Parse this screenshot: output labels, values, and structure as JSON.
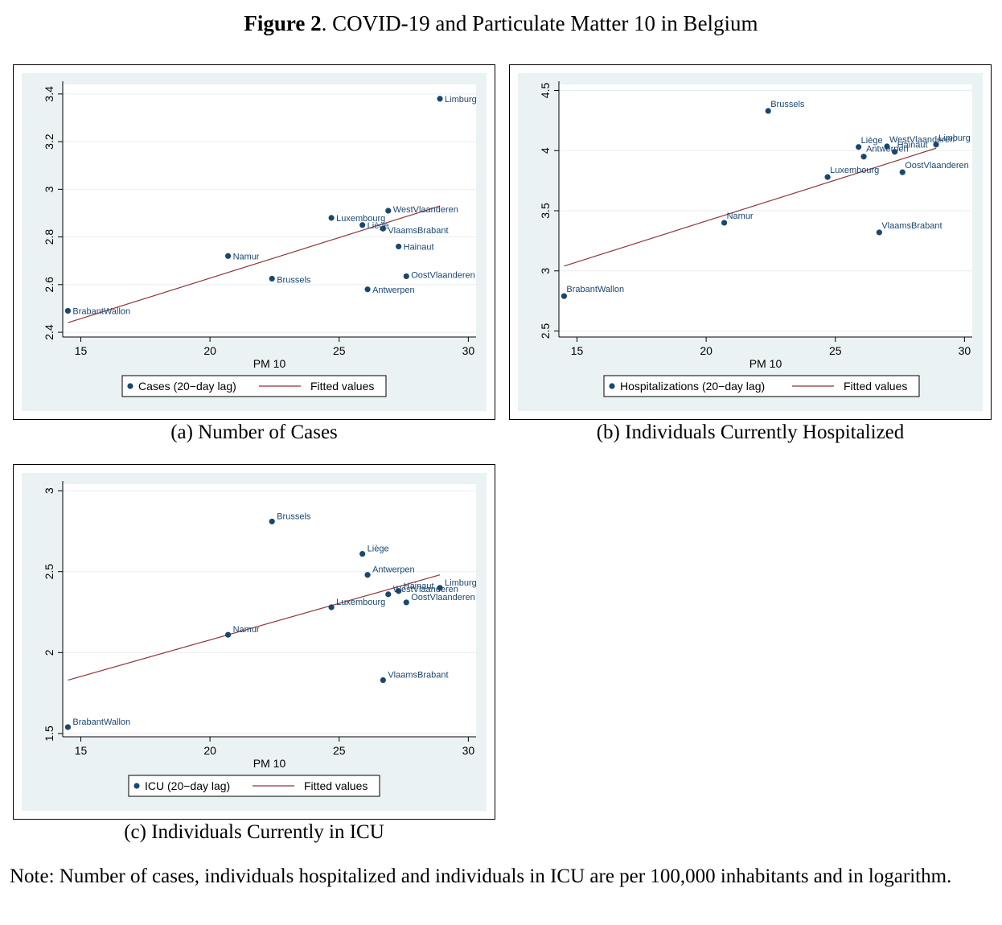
{
  "figure": {
    "title_bold": "Figure 2",
    "title_rest": ". COVID-19 and Particulate Matter 10 in Belgium"
  },
  "note": "Note: Number of cases, individuals hospitalized and individuals in ICU are per 100,000 inhabitants and in logarithm.",
  "colors": {
    "point": "#1a476f",
    "fit": "#90353b",
    "background": "#eaf2f3",
    "plot": "#ffffff"
  },
  "chart_data": [
    {
      "type": "scatter",
      "caption": "(a) Number of Cases",
      "xlabel": "PM 10",
      "ylabel": "",
      "xlim": [
        14.3,
        30.3
      ],
      "ylim": [
        2.38,
        3.44
      ],
      "xticks": [
        15,
        20,
        25,
        30
      ],
      "yticks": [
        2.4,
        2.6,
        2.8,
        3,
        3.2,
        3.4
      ],
      "ytick_labels": [
        "2.4",
        "2.6",
        "2.8",
        "3",
        "3.2",
        "3.4"
      ],
      "grid": true,
      "legend": {
        "placement": "bottom",
        "points": "Cases (20−day lag)",
        "line": "Fitted values"
      },
      "points": [
        {
          "label": "Limburg",
          "x": 28.9,
          "y": 3.38
        },
        {
          "label": "WestVlaanderen",
          "x": 26.9,
          "y": 2.91
        },
        {
          "label": "Luxembourg",
          "x": 24.7,
          "y": 2.88
        },
        {
          "label": "Liège",
          "x": 25.9,
          "y": 2.85
        },
        {
          "label": "VlaamsBrabant",
          "x": 26.7,
          "y": 2.835
        },
        {
          "label": "Hainaut",
          "x": 27.3,
          "y": 2.76
        },
        {
          "label": "Namur",
          "x": 20.7,
          "y": 2.72
        },
        {
          "label": "OostVlaanderen",
          "x": 27.6,
          "y": 2.635
        },
        {
          "label": "Brussels",
          "x": 22.4,
          "y": 2.625
        },
        {
          "label": "Antwerpen",
          "x": 26.1,
          "y": 2.58
        },
        {
          "label": "BrabantWallon",
          "x": 14.5,
          "y": 2.49
        }
      ],
      "fit": {
        "x": [
          14.5,
          28.9
        ],
        "y": [
          2.44,
          2.93
        ]
      }
    },
    {
      "type": "scatter",
      "caption": "(b) Individuals Currently Hospitalized",
      "xlabel": "PM 10",
      "ylabel": "",
      "xlim": [
        14.3,
        30.3
      ],
      "ylim": [
        2.45,
        4.55
      ],
      "xticks": [
        15,
        20,
        25,
        30
      ],
      "yticks": [
        2.5,
        3,
        3.5,
        4,
        4.5
      ],
      "ytick_labels": [
        "2.5",
        "3",
        "3.5",
        "4",
        "4.5"
      ],
      "grid": true,
      "legend": {
        "placement": "bottom",
        "points": "Hospitalizations (20−day lag)",
        "line": "Fitted values"
      },
      "points": [
        {
          "label": "Brussels",
          "x": 22.4,
          "y": 4.33
        },
        {
          "label": "Liège",
          "x": 25.9,
          "y": 4.03
        },
        {
          "label": "WestVlaanderen",
          "x": 27.0,
          "y": 4.035
        },
        {
          "label": "Limburg",
          "x": 28.9,
          "y": 4.05
        },
        {
          "label": "Hainaut",
          "x": 27.3,
          "y": 3.99
        },
        {
          "label": "Antwerpen",
          "x": 26.1,
          "y": 3.95
        },
        {
          "label": "OostVlaanderen",
          "x": 27.6,
          "y": 3.82
        },
        {
          "label": "Luxembourg",
          "x": 24.7,
          "y": 3.78
        },
        {
          "label": "Namur",
          "x": 20.7,
          "y": 3.4
        },
        {
          "label": "VlaamsBrabant",
          "x": 26.7,
          "y": 3.32
        },
        {
          "label": "BrabantWallon",
          "x": 14.5,
          "y": 2.79
        }
      ],
      "fit": {
        "x": [
          14.5,
          28.9
        ],
        "y": [
          3.04,
          4.02
        ]
      }
    },
    {
      "type": "scatter",
      "caption": "(c) Individuals Currently in ICU",
      "xlabel": "PM 10",
      "ylabel": "",
      "xlim": [
        14.3,
        30.3
      ],
      "ylim": [
        1.48,
        3.04
      ],
      "xticks": [
        15,
        20,
        25,
        30
      ],
      "yticks": [
        1.5,
        2,
        2.5,
        3
      ],
      "ytick_labels": [
        "1.5",
        "2",
        "2.5",
        "3"
      ],
      "grid": true,
      "legend": {
        "placement": "bottom",
        "points": "ICU (20−day lag)",
        "line": "Fitted values"
      },
      "points": [
        {
          "label": "Brussels",
          "x": 22.4,
          "y": 2.81
        },
        {
          "label": "Liège",
          "x": 25.9,
          "y": 2.61
        },
        {
          "label": "Antwerpen",
          "x": 26.1,
          "y": 2.48
        },
        {
          "label": "Limburg",
          "x": 28.9,
          "y": 2.4
        },
        {
          "label": "Hainaut",
          "x": 27.3,
          "y": 2.38
        },
        {
          "label": "WestVlaanderen",
          "x": 26.9,
          "y": 2.36
        },
        {
          "label": "OostVlaanderen",
          "x": 27.6,
          "y": 2.31
        },
        {
          "label": "Luxembourg",
          "x": 24.7,
          "y": 2.28
        },
        {
          "label": "Namur",
          "x": 20.7,
          "y": 2.11
        },
        {
          "label": "VlaamsBrabant",
          "x": 26.7,
          "y": 1.83
        },
        {
          "label": "BrabantWallon",
          "x": 14.5,
          "y": 1.54
        }
      ],
      "fit": {
        "x": [
          14.5,
          28.9
        ],
        "y": [
          1.83,
          2.48
        ]
      }
    }
  ]
}
